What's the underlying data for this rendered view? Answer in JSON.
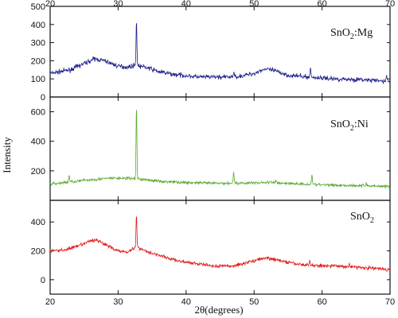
{
  "chart_data": {
    "type": "line",
    "xlabel": "2θ(degrees)",
    "ylabel": "Intensity",
    "xlim": [
      20,
      70
    ],
    "x_ticks": [
      "20",
      "30",
      "40",
      "50",
      "60",
      "70"
    ],
    "shared_x_axis": true,
    "top_axis_tick_labels": true,
    "panels": [
      {
        "label": "SnO2:Mg",
        "label_main": "SnO",
        "label_sub": "2",
        "label_suffix": ":Mg",
        "color": "#1f1f8c",
        "ylim": [
          0,
          500
        ],
        "y_ticks": [
          "0",
          "100",
          "200",
          "300",
          "400",
          "500"
        ],
        "baseline_points": [
          [
            20,
            130
          ],
          [
            23,
            150
          ],
          [
            25,
            185
          ],
          [
            26.5,
            210
          ],
          [
            28,
            200
          ],
          [
            30,
            170
          ],
          [
            31.5,
            165
          ],
          [
            32.5,
            175
          ],
          [
            34,
            165
          ],
          [
            36,
            140
          ],
          [
            38,
            125
          ],
          [
            42,
            110
          ],
          [
            46,
            110
          ],
          [
            48,
            115
          ],
          [
            50,
            130
          ],
          [
            51.5,
            155
          ],
          [
            53,
            145
          ],
          [
            55,
            120
          ],
          [
            58,
            110
          ],
          [
            62,
            100
          ],
          [
            66,
            95
          ],
          [
            70,
            85
          ]
        ],
        "peaks": [
          [
            32.7,
            420
          ],
          [
            58.3,
            160
          ],
          [
            47.0,
            135
          ],
          [
            69.5,
            120
          ]
        ],
        "noise": 22
      },
      {
        "label": "SnO2:Ni",
        "label_main": "SnO",
        "label_sub": "2",
        "label_suffix": ":Ni",
        "color": "#5aaa32",
        "ylim": [
          0,
          700
        ],
        "y_ticks": [
          "200",
          "400",
          "600"
        ],
        "baseline_points": [
          [
            20,
            110
          ],
          [
            23,
            125
          ],
          [
            26,
            140
          ],
          [
            29,
            150
          ],
          [
            31,
            150
          ],
          [
            32.5,
            145
          ],
          [
            34,
            140
          ],
          [
            36,
            130
          ],
          [
            40,
            120
          ],
          [
            45,
            115
          ],
          [
            50,
            118
          ],
          [
            52,
            122
          ],
          [
            55,
            115
          ],
          [
            60,
            105
          ],
          [
            65,
            100
          ],
          [
            70,
            95
          ]
        ],
        "peaks": [
          [
            32.7,
            640
          ],
          [
            22.8,
            170
          ],
          [
            47.0,
            200
          ],
          [
            53.2,
            140
          ],
          [
            58.5,
            180
          ],
          [
            66.5,
            120
          ]
        ],
        "noise": 18
      },
      {
        "label": "SnO2",
        "label_main": "SnO",
        "label_sub": "2",
        "label_suffix": "",
        "color": "#e01b1b",
        "ylim": [
          -100,
          550
        ],
        "y_ticks": [
          "0",
          "200",
          "400"
        ],
        "baseline_points": [
          [
            20,
            200
          ],
          [
            22,
            205
          ],
          [
            24,
            230
          ],
          [
            26,
            270
          ],
          [
            27,
            275
          ],
          [
            28,
            245
          ],
          [
            30,
            200
          ],
          [
            31.5,
            195
          ],
          [
            32.7,
            230
          ],
          [
            34,
            200
          ],
          [
            36,
            170
          ],
          [
            38,
            140
          ],
          [
            40,
            120
          ],
          [
            44,
            95
          ],
          [
            47,
            95
          ],
          [
            49,
            120
          ],
          [
            51,
            145
          ],
          [
            52,
            150
          ],
          [
            54,
            130
          ],
          [
            56,
            110
          ],
          [
            58,
            100
          ],
          [
            62,
            95
          ],
          [
            66,
            85
          ],
          [
            70,
            70
          ]
        ],
        "peaks": [
          [
            32.7,
            450
          ],
          [
            58.2,
            140
          ],
          [
            64.0,
            115
          ]
        ],
        "noise": 22
      }
    ]
  }
}
